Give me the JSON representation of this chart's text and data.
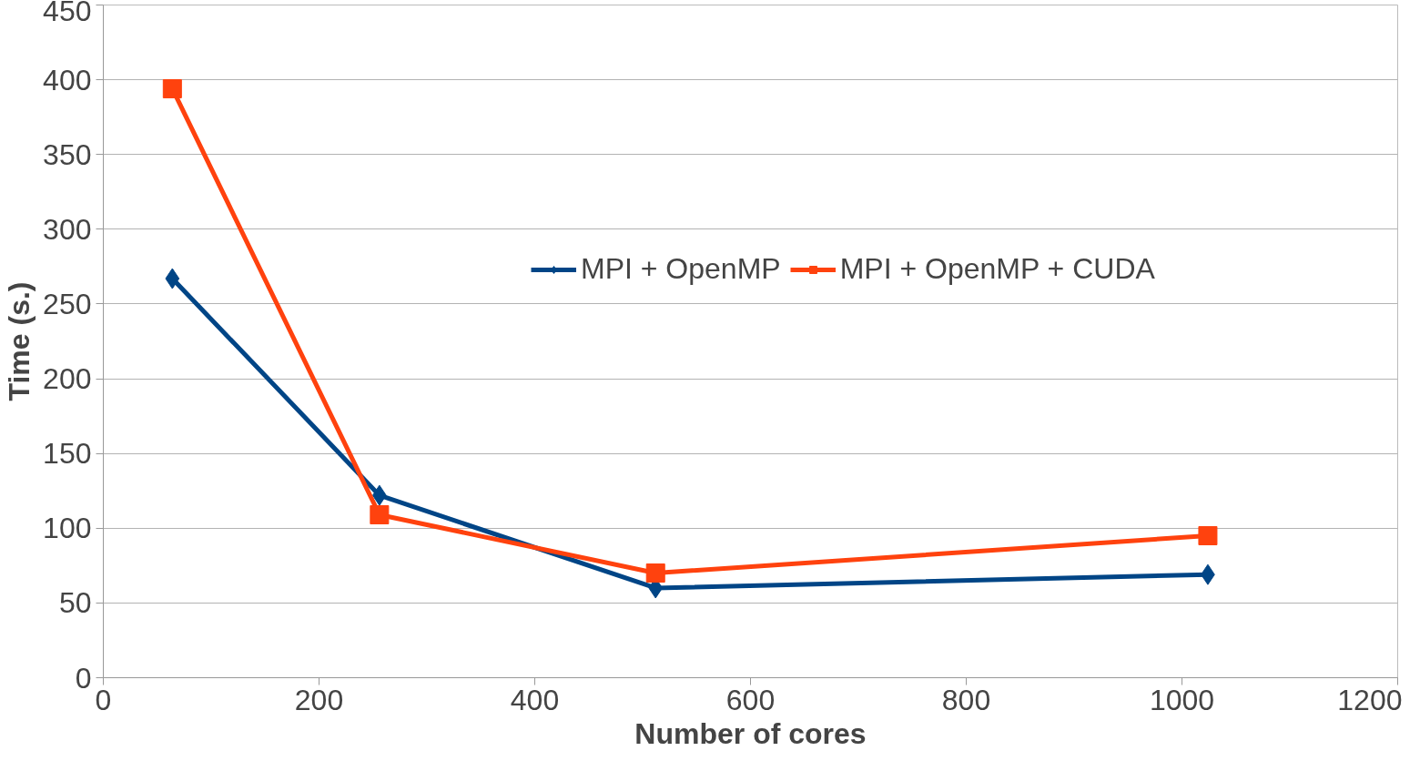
{
  "chart_data": {
    "type": "line",
    "xlabel": "Number of cores",
    "ylabel": "Time (s.)",
    "x": [
      64,
      256,
      512,
      1024
    ],
    "series": [
      {
        "name": "MPI + OpenMP",
        "color": "#004586",
        "marker": "diamond",
        "values": [
          267,
          122,
          60,
          69
        ]
      },
      {
        "name": "MPI + OpenMP + CUDA",
        "color": "#ff420e",
        "marker": "square",
        "values": [
          394,
          109,
          70,
          95
        ]
      }
    ],
    "xlim": [
      0,
      1200
    ],
    "xticks": [
      0,
      200,
      400,
      600,
      800,
      1000,
      1200
    ],
    "ylim": [
      0,
      450
    ],
    "yticks": [
      0,
      50,
      100,
      150,
      200,
      250,
      300,
      350,
      400,
      450
    ],
    "grid": "y",
    "legend": "top right"
  }
}
